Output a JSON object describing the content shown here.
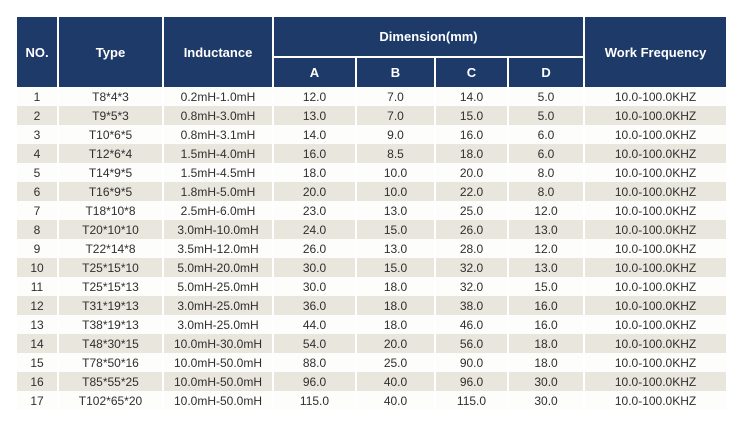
{
  "colors": {
    "header-bg": "#1e3a69",
    "header-text": "#ffffff",
    "row-shade": "#e9e6dd",
    "row-plain": "#fdfdfc",
    "body-text": "#2f2f2f",
    "grid-line": "#ffffff",
    "page-bg": "#ffffff"
  },
  "chart_data": {
    "type": "table",
    "header": {
      "no": "NO.",
      "type": "Type",
      "inductance": "Inductance",
      "dimension": "Dimension(mm)",
      "dim_cols": [
        "A",
        "B",
        "C",
        "D"
      ],
      "work_frequency": "Work Frequency"
    },
    "columns": [
      "NO.",
      "Type",
      "Inductance",
      "A",
      "B",
      "C",
      "D",
      "Work Frequency"
    ],
    "rows": [
      [
        "1",
        "T8*4*3",
        "0.2mH-1.0mH",
        "12.0",
        "7.0",
        "14.0",
        "5.0",
        "10.0-100.0KHZ"
      ],
      [
        "2",
        "T9*5*3",
        "0.8mH-3.0mH",
        "13.0",
        "7.0",
        "15.0",
        "5.0",
        "10.0-100.0KHZ"
      ],
      [
        "3",
        "T10*6*5",
        "0.8mH-3.1mH",
        "14.0",
        "9.0",
        "16.0",
        "6.0",
        "10.0-100.0KHZ"
      ],
      [
        "4",
        "T12*6*4",
        "1.5mH-4.0mH",
        "16.0",
        "8.5",
        "18.0",
        "6.0",
        "10.0-100.0KHZ"
      ],
      [
        "5",
        "T14*9*5",
        "1.5mH-4.5mH",
        "18.0",
        "10.0",
        "20.0",
        "8.0",
        "10.0-100.0KHZ"
      ],
      [
        "6",
        "T16*9*5",
        "1.8mH-5.0mH",
        "20.0",
        "10.0",
        "22.0",
        "8.0",
        "10.0-100.0KHZ"
      ],
      [
        "7",
        "T18*10*8",
        "2.5mH-6.0mH",
        "23.0",
        "13.0",
        "25.0",
        "12.0",
        "10.0-100.0KHZ"
      ],
      [
        "8",
        "T20*10*10",
        "3.0mH-10.0mH",
        "24.0",
        "15.0",
        "26.0",
        "13.0",
        "10.0-100.0KHZ"
      ],
      [
        "9",
        "T22*14*8",
        "3.5mH-12.0mH",
        "26.0",
        "13.0",
        "28.0",
        "12.0",
        "10.0-100.0KHZ"
      ],
      [
        "10",
        "T25*15*10",
        "5.0mH-20.0mH",
        "30.0",
        "15.0",
        "32.0",
        "13.0",
        "10.0-100.0KHZ"
      ],
      [
        "11",
        "T25*15*13",
        "5.0mH-25.0mH",
        "30.0",
        "18.0",
        "32.0",
        "15.0",
        "10.0-100.0KHZ"
      ],
      [
        "12",
        "T31*19*13",
        "3.0mH-25.0mH",
        "36.0",
        "18.0",
        "38.0",
        "16.0",
        "10.0-100.0KHZ"
      ],
      [
        "13",
        "T38*19*13",
        "3.0mH-25.0mH",
        "44.0",
        "18.0",
        "46.0",
        "16.0",
        "10.0-100.0KHZ"
      ],
      [
        "14",
        "T48*30*15",
        "10.0mH-30.0mH",
        "54.0",
        "20.0",
        "56.0",
        "18.0",
        "10.0-100.0KHZ"
      ],
      [
        "15",
        "T78*50*16",
        "10.0mH-50.0mH",
        "88.0",
        "25.0",
        "90.0",
        "18.0",
        "10.0-100.0KHZ"
      ],
      [
        "16",
        "T85*55*25",
        "10.0mH-50.0mH",
        "96.0",
        "40.0",
        "96.0",
        "30.0",
        "10.0-100.0KHZ"
      ],
      [
        "17",
        "T102*65*20",
        "10.0mH-50.0mH",
        "115.0",
        "40.0",
        "115.0",
        "30.0",
        "10.0-100.0KHZ"
      ]
    ]
  }
}
